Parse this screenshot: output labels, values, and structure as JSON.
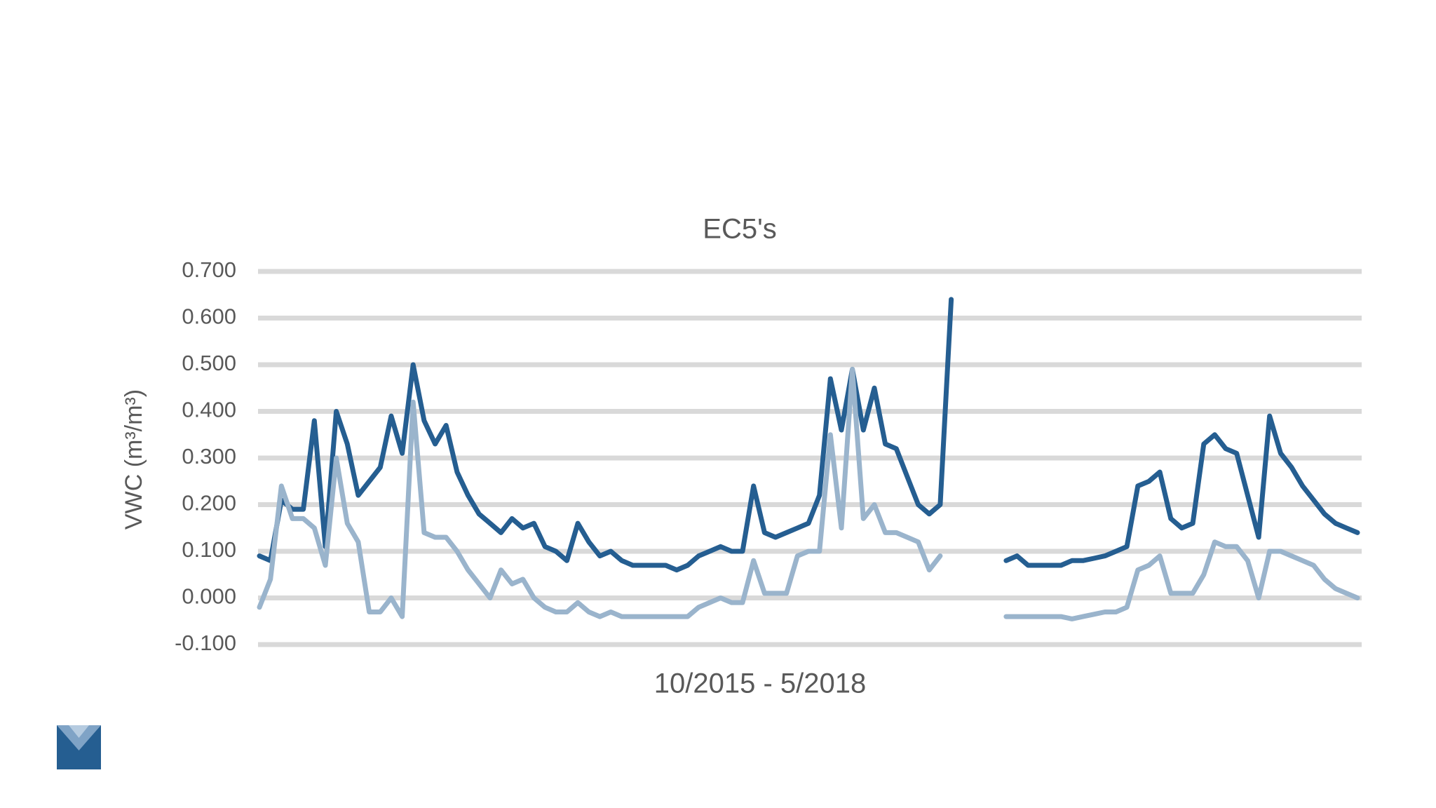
{
  "chart_data": {
    "type": "line",
    "title": "EC5's",
    "y_label": "VWC (m³/m³)",
    "x_label": "10/2015 - 5/2018",
    "ylim": [
      -0.1,
      0.7
    ],
    "yticks": [
      {
        "value": -0.1,
        "label": "-0.100"
      },
      {
        "value": 0,
        "label": "0.000"
      },
      {
        "value": 0.1,
        "label": "0.100"
      },
      {
        "value": 0.2,
        "label": "0.200"
      },
      {
        "value": 0.3,
        "label": "0.300"
      },
      {
        "value": 0.4,
        "label": "0.400"
      },
      {
        "value": 0.5,
        "label": "0.500"
      },
      {
        "value": 0.6,
        "label": "0.600"
      },
      {
        "value": 0.7,
        "label": "0.700"
      }
    ],
    "grid": true,
    "series": [
      {
        "color": "#255e91",
        "values": [
          0.09,
          0.08,
          0.21,
          0.19,
          0.19,
          0.38,
          0.11,
          0.4,
          0.33,
          0.22,
          0.25,
          0.28,
          0.39,
          0.31,
          0.5,
          0.38,
          0.33,
          0.37,
          0.27,
          0.22,
          0.18,
          0.16,
          0.14,
          0.17,
          0.15,
          0.16,
          0.11,
          0.1,
          0.08,
          0.16,
          0.12,
          0.09,
          0.1,
          0.08,
          0.07,
          0.07,
          0.07,
          0.07,
          0.06,
          0.07,
          0.09,
          0.1,
          0.11,
          0.1,
          0.1,
          0.24,
          0.14,
          0.13,
          0.14,
          0.15,
          0.16,
          0.22,
          0.47,
          0.36,
          0.49,
          0.36,
          0.45,
          0.33,
          0.32,
          0.26,
          0.2,
          0.18,
          0.2,
          0.64,
          null,
          null,
          null,
          null,
          0.08,
          0.09,
          0.07,
          0.07,
          0.07,
          0.07,
          0.08,
          0.08,
          0.085,
          0.09,
          0.1,
          0.11,
          0.24,
          0.25,
          0.27,
          0.17,
          0.15,
          0.16,
          0.33,
          0.35,
          0.32,
          0.31,
          0.22,
          0.13,
          0.39,
          0.31,
          0.28,
          0.24,
          0.21,
          0.18,
          0.16,
          0.15,
          0.14
        ]
      },
      {
        "color": "#9ab4cc",
        "values": [
          -0.02,
          0.04,
          0.24,
          0.17,
          0.17,
          0.15,
          0.07,
          0.3,
          0.16,
          0.12,
          -0.03,
          -0.03,
          0.0,
          -0.04,
          0.42,
          0.14,
          0.13,
          0.13,
          0.1,
          0.06,
          0.03,
          0.0,
          0.06,
          0.03,
          0.04,
          0.0,
          -0.02,
          -0.03,
          -0.03,
          -0.01,
          -0.03,
          -0.04,
          -0.03,
          -0.04,
          -0.04,
          -0.04,
          -0.04,
          -0.04,
          -0.04,
          -0.04,
          -0.02,
          -0.01,
          0.0,
          -0.01,
          -0.01,
          0.08,
          0.01,
          0.01,
          0.01,
          0.09,
          0.1,
          0.1,
          0.35,
          0.15,
          0.49,
          0.17,
          0.2,
          0.14,
          0.14,
          0.13,
          0.12,
          0.06,
          0.09,
          null,
          null,
          null,
          null,
          null,
          -0.04,
          -0.04,
          -0.04,
          -0.04,
          -0.04,
          -0.04,
          -0.045,
          -0.04,
          -0.035,
          -0.03,
          -0.03,
          -0.02,
          0.06,
          0.07,
          0.09,
          0.01,
          0.01,
          0.01,
          0.05,
          0.12,
          0.11,
          0.11,
          0.08,
          0.0,
          0.1,
          0.1,
          0.09,
          0.08,
          0.07,
          0.04,
          0.02,
          0.01,
          0.0
        ]
      }
    ]
  }
}
